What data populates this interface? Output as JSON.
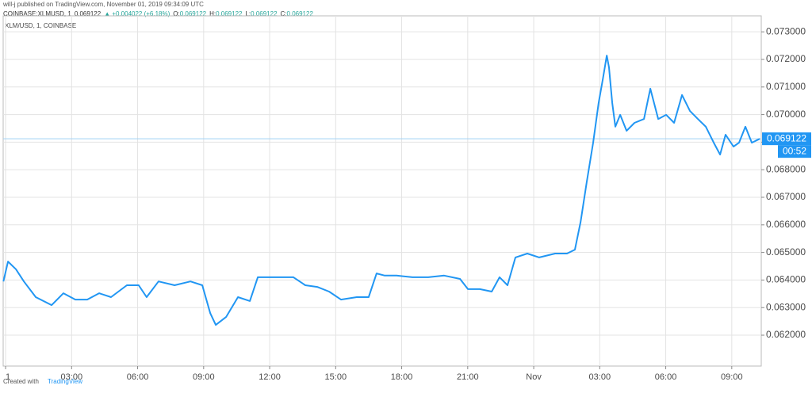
{
  "header": {
    "publisher": "will-j published on TradingView.com, November 01, 2019 09:34:09 UTC",
    "symbol": "COINBASE:XLMUSD, 1",
    "close": "0.069122",
    "change": "▲ +0.004022 (+6.18%)",
    "ohlc": [
      {
        "label": "O:",
        "value": "0.069122"
      },
      {
        "label": "H:",
        "value": "0.069122"
      },
      {
        "label": "L:",
        "value": "0.069122"
      },
      {
        "label": "C:",
        "value": "0.069122"
      }
    ]
  },
  "footer": {
    "created": "Created with",
    "brand": "TradingView"
  },
  "chart_data": {
    "type": "line",
    "title": "XLM/USD, 1, COINBASE",
    "x": [
      -0.1,
      0.11,
      0.47,
      0.83,
      1.37,
      2.09,
      2.63,
      3.17,
      3.71,
      4.25,
      4.79,
      5.51,
      6.05,
      6.41,
      6.95,
      7.68,
      8.4,
      8.94,
      9.3,
      9.55,
      10.02,
      10.56,
      11.1,
      11.46,
      12.18,
      13.08,
      13.62,
      14.16,
      14.7,
      15.24,
      15.96,
      16.5,
      16.86,
      17.23,
      17.77,
      18.49,
      19.21,
      19.93,
      20.65,
      21.01,
      21.55,
      22.09,
      22.45,
      22.81,
      23.17,
      23.71,
      24.25,
      24.97,
      25.51,
      25.87,
      26.13,
      26.41,
      26.7,
      26.95,
      27.14,
      27.32,
      27.42,
      27.57,
      27.71,
      27.93,
      28.22,
      28.58,
      29.01,
      29.3,
      29.66,
      30.02,
      30.38,
      30.74,
      31.1,
      31.46,
      31.82,
      32.18,
      32.47,
      32.72,
      33.08,
      33.33,
      33.62,
      33.91,
      34.27
    ],
    "series": [
      {
        "name": "XLM/USD",
        "color": "#2196f3",
        "values": [
          0.06395,
          0.06467,
          0.06439,
          0.06395,
          0.06338,
          0.06309,
          0.06352,
          0.06329,
          0.06329,
          0.06352,
          0.06338,
          0.06381,
          0.06381,
          0.06338,
          0.06395,
          0.06381,
          0.06395,
          0.06381,
          0.0628,
          0.06237,
          0.06266,
          0.06338,
          0.06324,
          0.0641,
          0.0641,
          0.0641,
          0.06381,
          0.06375,
          0.06358,
          0.06329,
          0.06338,
          0.06338,
          0.06424,
          0.06416,
          0.06416,
          0.0641,
          0.0641,
          0.06416,
          0.06404,
          0.06367,
          0.06367,
          0.06358,
          0.0641,
          0.06381,
          0.06482,
          0.06496,
          0.06482,
          0.06496,
          0.06496,
          0.0651,
          0.06611,
          0.06755,
          0.06898,
          0.07042,
          0.07128,
          0.07214,
          0.07171,
          0.07042,
          0.06956,
          0.06999,
          0.06941,
          0.0697,
          0.06984,
          0.07094,
          0.06984,
          0.06999,
          0.0697,
          0.07071,
          0.07013,
          0.06984,
          0.06956,
          0.06898,
          0.06855,
          0.06927,
          0.06884,
          0.06898,
          0.06956,
          0.06898,
          0.069122
        ]
      }
    ],
    "last_price": 0.069122,
    "countdown": "00:52",
    "xlim": [
      -0.11,
      34.34
    ],
    "xticks": [
      {
        "value": 0,
        "label": "1"
      },
      {
        "value": 3,
        "label": "03:00"
      },
      {
        "value": 6,
        "label": "06:00"
      },
      {
        "value": 9,
        "label": "09:00"
      },
      {
        "value": 12,
        "label": "12:00"
      },
      {
        "value": 15,
        "label": "15:00"
      },
      {
        "value": 18,
        "label": "18:00"
      },
      {
        "value": 21,
        "label": "21:00"
      },
      {
        "value": 24,
        "label": "Nov"
      },
      {
        "value": 27,
        "label": "03:00"
      },
      {
        "value": 30,
        "label": "06:00"
      },
      {
        "value": 33,
        "label": "09:00"
      }
    ],
    "ylim": [
      0.06088,
      0.07358
    ],
    "yticks": [
      {
        "value": 0.062,
        "label": "0.062000"
      },
      {
        "value": 0.063,
        "label": "0.063000"
      },
      {
        "value": 0.064,
        "label": "0.064000"
      },
      {
        "value": 0.065,
        "label": "0.065000"
      },
      {
        "value": 0.066,
        "label": "0.066000"
      },
      {
        "value": 0.067,
        "label": "0.067000"
      },
      {
        "value": 0.068,
        "label": "0.068000"
      },
      {
        "value": 0.069,
        "label": "0.069000"
      },
      {
        "value": 0.07,
        "label": "0.070000"
      },
      {
        "value": 0.071,
        "label": "0.071000"
      },
      {
        "value": 0.072,
        "label": "0.072000"
      },
      {
        "value": 0.073,
        "label": "0.073000"
      }
    ],
    "grid": true
  }
}
